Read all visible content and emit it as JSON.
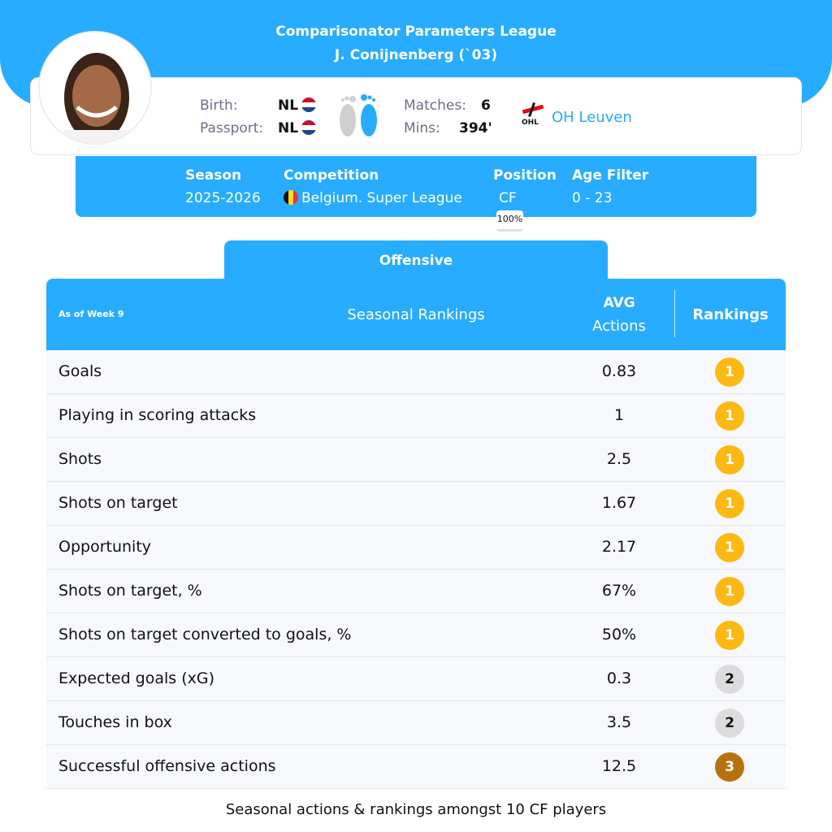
{
  "header": {
    "title": "Comparisonator Parameters League",
    "player": "J. Conijnenberg (`03)"
  },
  "profile": {
    "birth_label": "Birth:",
    "birth_value": "NL",
    "passport_label": "Passport:",
    "passport_value": "NL",
    "matches_label": "Matches:",
    "matches_value": "6",
    "mins_label": "Mins:",
    "mins_value": "394'",
    "club": "OH Leuven",
    "club_logo_text": "OHL",
    "foot_icon": "feet-icon-right-preferred"
  },
  "filters": {
    "season_label": "Season",
    "season_value": "2025-2026",
    "competition_label": "Competition",
    "competition_value": "Belgium. Super League",
    "position_label": "Position",
    "position_value": "CF",
    "position_pct": "100%",
    "age_label": "Age Filter",
    "age_value": "0 - 23"
  },
  "tab": "Offensive",
  "table": {
    "week": "As of Week 9",
    "title": "Seasonal Rankings",
    "avg_label": "AVG",
    "actions_label": "Actions",
    "rankings_label": "Rankings",
    "rows": [
      {
        "name": "Goals",
        "avg": "0.83",
        "rank": "1"
      },
      {
        "name": "Playing in scoring attacks",
        "avg": "1",
        "rank": "1"
      },
      {
        "name": "Shots",
        "avg": "2.5",
        "rank": "1"
      },
      {
        "name": "Shots on target",
        "avg": "1.67",
        "rank": "1"
      },
      {
        "name": "Opportunity",
        "avg": "2.17",
        "rank": "1"
      },
      {
        "name": "Shots on target, %",
        "avg": "67%",
        "rank": "1"
      },
      {
        "name": "Shots on target converted to goals, %",
        "avg": "50%",
        "rank": "1"
      },
      {
        "name": "Expected goals (xG)",
        "avg": "0.3",
        "rank": "2"
      },
      {
        "name": "Touches in box",
        "avg": "3.5",
        "rank": "2"
      },
      {
        "name": "Successful offensive actions",
        "avg": "12.5",
        "rank": "3"
      }
    ]
  },
  "colors": {
    "accent": "#27acff",
    "gold": "#fdb913",
    "silver": "#dcdcdc",
    "bronze": "#b8720d"
  },
  "footer": "Seasonal actions & rankings amongst 10 CF players"
}
